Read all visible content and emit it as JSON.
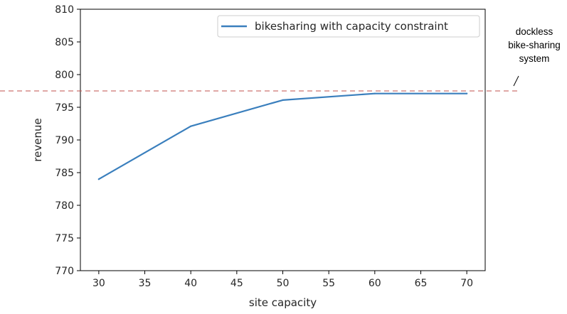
{
  "chart_data": {
    "type": "line",
    "xlabel": "site capacity",
    "ylabel": "revenue",
    "xlim": [
      28,
      72
    ],
    "ylim": [
      770,
      810
    ],
    "xticks": [
      30,
      35,
      40,
      45,
      50,
      55,
      60,
      65,
      70
    ],
    "yticks": [
      770,
      775,
      780,
      785,
      790,
      795,
      800,
      805,
      810
    ],
    "grid": false,
    "legend_position": "top-right",
    "series": [
      {
        "name": "bikesharing with capacity constraint",
        "color": "#3a7fbd",
        "x": [
          30,
          40,
          50,
          60,
          70
        ],
        "y": [
          784.0,
          792.1,
          796.1,
          797.1,
          797.1
        ]
      }
    ],
    "reference_line": {
      "y": 797.5,
      "color": "#c0504d",
      "style": "dashed",
      "label_lines": [
        "dockless",
        "bike-sharing",
        "system"
      ]
    }
  }
}
